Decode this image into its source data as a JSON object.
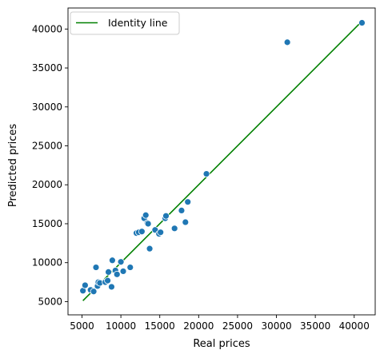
{
  "chart_data": {
    "type": "scatter",
    "xlabel": "Real prices",
    "ylabel": "Predicted prices",
    "xlim": [
      3200,
      42700
    ],
    "ylim": [
      3300,
      42700
    ],
    "xticks": [
      5000,
      10000,
      15000,
      20000,
      25000,
      30000,
      35000,
      40000
    ],
    "yticks": [
      5000,
      10000,
      15000,
      20000,
      25000,
      30000,
      35000,
      40000
    ],
    "grid": false,
    "legend": {
      "position": "top-left",
      "entries": [
        "Identity line"
      ]
    },
    "colors": {
      "points": "#1f77b4",
      "line": "#008000",
      "point_edge": "#ffffff"
    },
    "identity_line": {
      "name": "Identity line",
      "x": [
        5118,
        41000
      ],
      "y": [
        5118,
        41000
      ]
    },
    "points": [
      {
        "x": 5118,
        "y": 6400
      },
      {
        "x": 5400,
        "y": 7100
      },
      {
        "x": 6100,
        "y": 6500
      },
      {
        "x": 6500,
        "y": 6300
      },
      {
        "x": 6800,
        "y": 9400
      },
      {
        "x": 7000,
        "y": 7000
      },
      {
        "x": 7100,
        "y": 7500
      },
      {
        "x": 7300,
        "y": 7400
      },
      {
        "x": 8000,
        "y": 7500
      },
      {
        "x": 8300,
        "y": 7700
      },
      {
        "x": 8400,
        "y": 8800
      },
      {
        "x": 8800,
        "y": 6900
      },
      {
        "x": 8900,
        "y": 10300
      },
      {
        "x": 9300,
        "y": 9000
      },
      {
        "x": 9500,
        "y": 8500
      },
      {
        "x": 10000,
        "y": 10100
      },
      {
        "x": 10300,
        "y": 8900
      },
      {
        "x": 11200,
        "y": 9400
      },
      {
        "x": 12000,
        "y": 13800
      },
      {
        "x": 12300,
        "y": 13900
      },
      {
        "x": 12700,
        "y": 14000
      },
      {
        "x": 13000,
        "y": 15700
      },
      {
        "x": 13200,
        "y": 16100
      },
      {
        "x": 13400,
        "y": 15100
      },
      {
        "x": 13700,
        "y": 11800
      },
      {
        "x": 13500,
        "y": 15000
      },
      {
        "x": 14400,
        "y": 14200
      },
      {
        "x": 14900,
        "y": 13700
      },
      {
        "x": 15100,
        "y": 13900
      },
      {
        "x": 15700,
        "y": 15700
      },
      {
        "x": 15800,
        "y": 16000
      },
      {
        "x": 16900,
        "y": 14400
      },
      {
        "x": 17800,
        "y": 16700
      },
      {
        "x": 18300,
        "y": 15200
      },
      {
        "x": 18600,
        "y": 17800
      },
      {
        "x": 21000,
        "y": 21400
      },
      {
        "x": 31400,
        "y": 38300
      },
      {
        "x": 41000,
        "y": 40800
      }
    ]
  }
}
